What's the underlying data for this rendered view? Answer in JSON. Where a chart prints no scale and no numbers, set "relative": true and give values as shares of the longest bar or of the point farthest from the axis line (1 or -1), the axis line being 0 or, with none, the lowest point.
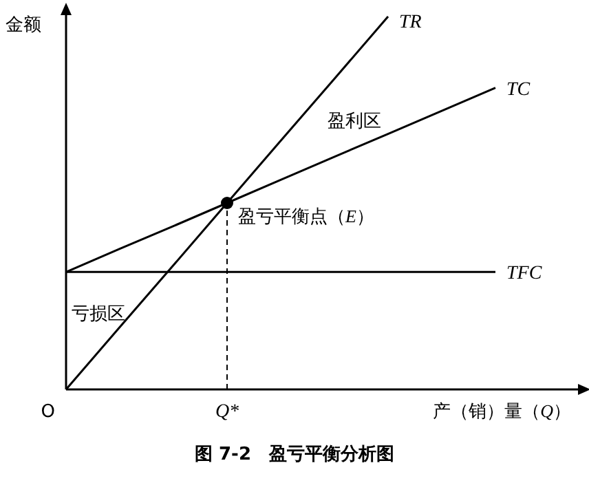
{
  "chart_data": {
    "type": "line",
    "relative": true,
    "title": "图 7-2　盈亏平衡分析图",
    "xlabel": "产（销）量（*Q*）",
    "ylabel": "金额",
    "marker": "none",
    "line_style": "solid",
    "categories": [
      null,
      null,
      null,
      null,
      null,
      null,
      null,
      null,
      null
    ],
    "series": [
      {
        "name": "TR",
        "color": "#000000",
        "values": [
          0,
          0.167,
          0.333,
          0.5,
          0.667,
          0.833,
          1,
          null,
          null
        ]
      },
      {
        "name": "TC",
        "color": "#000000",
        "values": [
          0.315,
          0.377,
          0.438,
          0.5,
          0.562,
          0.624,
          0.685,
          0.747,
          0.809
        ]
      },
      {
        "name": "TFC",
        "color": "#000000",
        "values": [
          0.315,
          0.315,
          0.315,
          0.315,
          0.315,
          0.315,
          0.315,
          0.315,
          0.315
        ]
      }
    ],
    "annotations": [
      "O",
      "Q*",
      "盈亏平衡点（*E*）",
      "盈利区",
      "亏损区"
    ]
  }
}
